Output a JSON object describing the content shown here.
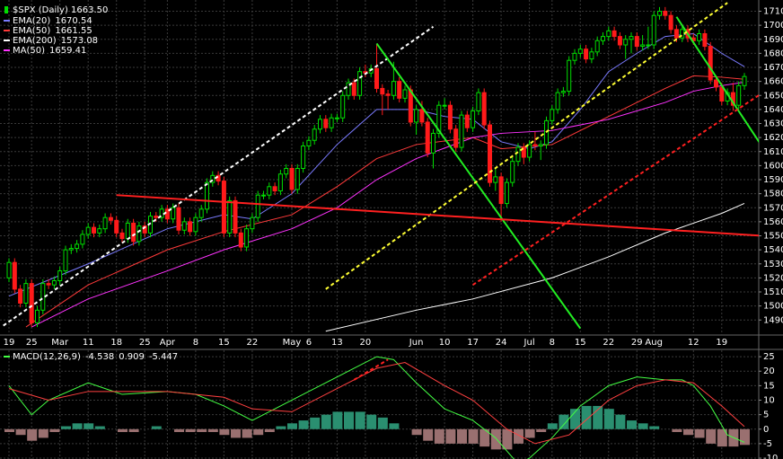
{
  "chart_data": [
    {
      "type": "candlestick",
      "title": "$SPX (Daily) 1663.50",
      "categories": [
        "19",
        null,
        null,
        null,
        "25",
        null,
        null,
        null,
        null,
        "Mar",
        null,
        null,
        null,
        null,
        "11",
        null,
        null,
        null,
        null,
        "18",
        null,
        null,
        null,
        null,
        "25",
        null,
        null,
        null,
        "Apr",
        null,
        null,
        null,
        null,
        "8",
        null,
        null,
        null,
        null,
        "15",
        null,
        null,
        null,
        null,
        "22",
        null,
        null,
        null,
        null,
        null,
        null,
        "May",
        null,
        null,
        "6",
        null,
        null,
        null,
        null,
        "13",
        null,
        null,
        null,
        null,
        "20",
        null,
        null,
        null,
        null,
        null,
        null,
        null,
        null,
        "Jun",
        null,
        null,
        null,
        null,
        "10",
        null,
        null,
        null,
        null,
        "17",
        null,
        null,
        null,
        null,
        "24",
        null,
        null,
        null,
        null,
        "Jul",
        null,
        null,
        null,
        "8",
        null,
        null,
        null,
        null,
        "15",
        null,
        null,
        null,
        null,
        "22",
        null,
        null,
        null,
        null,
        "29",
        null,
        null,
        "Aug",
        null,
        null,
        null,
        null,
        null,
        null,
        "12",
        null,
        null,
        null,
        null,
        "19",
        null,
        null,
        null,
        null
      ],
      "open": [
        1520,
        1531,
        1512,
        1502,
        1516,
        1488,
        1497,
        1516,
        1515,
        1518,
        1525,
        1540,
        1541,
        1544,
        1551,
        1556,
        1552,
        1555,
        1563,
        1561,
        1552,
        1548,
        1559,
        1546,
        1557,
        1552,
        1564,
        1563,
        1569,
        1562,
        1570,
        1554,
        1560,
        1553,
        1563,
        1569,
        1588,
        1593,
        1589,
        1552,
        1575,
        1552,
        1542,
        1555,
        1563,
        1579,
        1579,
        1585,
        1582,
        1594,
        1598,
        1583,
        1598,
        1614,
        1618,
        1626,
        1633,
        1627,
        1634,
        1634,
        1650,
        1659,
        1650,
        1667,
        1666,
        1669,
        1655,
        1651,
        1650,
        1660,
        1648,
        1654,
        1631,
        1640,
        1631,
        1609,
        1623,
        1643,
        1643,
        1626,
        1613,
        1636,
        1627,
        1639,
        1652,
        1629,
        1588,
        1592,
        1573,
        1588,
        1603,
        1613,
        1606,
        1615,
        1614,
        1615,
        1632,
        1640,
        1652,
        1653,
        1675,
        1680,
        1683,
        1676,
        1681,
        1689,
        1692,
        1696,
        1692,
        1686,
        1690,
        1692,
        1685,
        1686,
        1686,
        1707,
        1710,
        1707,
        1697,
        1691,
        1697,
        1691,
        1689,
        1694,
        1685,
        1661,
        1656,
        1646,
        1652,
        1643,
        1657
      ],
      "high": [
        1534,
        1534,
        1515,
        1519,
        1519,
        1500,
        1519,
        1519,
        1521,
        1528,
        1543,
        1544,
        1547,
        1554,
        1559,
        1559,
        1558,
        1566,
        1566,
        1564,
        1555,
        1562,
        1562,
        1560,
        1560,
        1567,
        1567,
        1572,
        1572,
        1573,
        1573,
        1563,
        1563,
        1566,
        1572,
        1591,
        1596,
        1596,
        1592,
        1578,
        1578,
        1555,
        1558,
        1566,
        1582,
        1582,
        1588,
        1588,
        1597,
        1601,
        1601,
        1601,
        1617,
        1621,
        1629,
        1636,
        1636,
        1637,
        1637,
        1653,
        1662,
        1662,
        1670,
        1672,
        1672,
        1687,
        1658,
        1654,
        1674,
        1663,
        1657,
        1657,
        1643,
        1646,
        1634,
        1626,
        1646,
        1648,
        1646,
        1629,
        1639,
        1639,
        1642,
        1655,
        1655,
        1632,
        1598,
        1595,
        1591,
        1606,
        1616,
        1616,
        1618,
        1624,
        1618,
        1635,
        1643,
        1655,
        1656,
        1678,
        1683,
        1686,
        1686,
        1684,
        1692,
        1695,
        1699,
        1699,
        1695,
        1693,
        1695,
        1695,
        1693,
        1699,
        1710,
        1713,
        1713,
        1710,
        1700,
        1700,
        1700,
        1694,
        1697,
        1697,
        1688,
        1664,
        1659,
        1655,
        1659,
        1660,
        1666
      ],
      "low": [
        1517,
        1509,
        1499,
        1499,
        1485,
        1485,
        1494,
        1512,
        1512,
        1515,
        1522,
        1537,
        1538,
        1541,
        1548,
        1549,
        1549,
        1552,
        1558,
        1549,
        1545,
        1545,
        1543,
        1543,
        1549,
        1549,
        1560,
        1560,
        1559,
        1559,
        1551,
        1551,
        1550,
        1550,
        1560,
        1566,
        1585,
        1586,
        1549,
        1549,
        1549,
        1539,
        1539,
        1552,
        1560,
        1576,
        1576,
        1579,
        1579,
        1591,
        1580,
        1580,
        1595,
        1611,
        1615,
        1623,
        1624,
        1624,
        1631,
        1631,
        1647,
        1647,
        1647,
        1663,
        1663,
        1652,
        1636,
        1640,
        1647,
        1645,
        1645,
        1628,
        1622,
        1628,
        1606,
        1598,
        1620,
        1640,
        1623,
        1610,
        1610,
        1624,
        1624,
        1636,
        1626,
        1585,
        1582,
        1560,
        1570,
        1585,
        1600,
        1601,
        1603,
        1611,
        1604,
        1612,
        1629,
        1637,
        1649,
        1650,
        1672,
        1677,
        1673,
        1673,
        1678,
        1686,
        1689,
        1689,
        1683,
        1676,
        1680,
        1682,
        1682,
        1683,
        1683,
        1704,
        1704,
        1694,
        1688,
        1688,
        1688,
        1686,
        1686,
        1682,
        1658,
        1653,
        1643,
        1643,
        1639,
        1640,
        1654
      ],
      "close": [
        1531,
        1512,
        1502,
        1516,
        1488,
        1497,
        1516,
        1515,
        1518,
        1525,
        1540,
        1541,
        1544,
        1551,
        1556,
        1552,
        1555,
        1563,
        1561,
        1552,
        1548,
        1559,
        1546,
        1557,
        1552,
        1564,
        1563,
        1569,
        1562,
        1570,
        1554,
        1560,
        1553,
        1563,
        1569,
        1588,
        1593,
        1589,
        1552,
        1575,
        1552,
        1542,
        1555,
        1563,
        1579,
        1579,
        1585,
        1582,
        1594,
        1598,
        1583,
        1598,
        1614,
        1618,
        1626,
        1633,
        1627,
        1634,
        1634,
        1650,
        1659,
        1650,
        1667,
        1666,
        1669,
        1655,
        1651,
        1650,
        1660,
        1648,
        1654,
        1631,
        1640,
        1631,
        1609,
        1623,
        1643,
        1643,
        1626,
        1613,
        1636,
        1627,
        1639,
        1652,
        1629,
        1588,
        1592,
        1573,
        1588,
        1603,
        1613,
        1606,
        1615,
        1614,
        1615,
        1632,
        1640,
        1652,
        1653,
        1675,
        1680,
        1683,
        1676,
        1681,
        1689,
        1692,
        1696,
        1692,
        1686,
        1690,
        1692,
        1685,
        1686,
        1686,
        1707,
        1710,
        1707,
        1697,
        1691,
        1697,
        1691,
        1689,
        1694,
        1685,
        1661,
        1656,
        1646,
        1652,
        1643,
        1657,
        1663.5
      ],
      "up_color": "#00dd00",
      "down_color": "#ff1a1a",
      "ylim": [
        1478,
        1718
      ],
      "yticks": [
        1490,
        1500,
        1510,
        1520,
        1530,
        1540,
        1550,
        1560,
        1570,
        1580,
        1590,
        1600,
        1610,
        1620,
        1630,
        1640,
        1650,
        1660,
        1670,
        1680,
        1690,
        1700,
        1710
      ],
      "grid": true,
      "series": [
        {
          "name": "EMA(20)",
          "color": "#7b7bff",
          "x": [
            0,
            14,
            28,
            38,
            43,
            50,
            58,
            65,
            72,
            77,
            82,
            87,
            92,
            96,
            101,
            106,
            111,
            116,
            121,
            126,
            130
          ],
          "values": [
            1507,
            1530,
            1555,
            1565,
            1562,
            1580,
            1615,
            1640,
            1640,
            1635,
            1633,
            1617,
            1612,
            1617,
            1640,
            1667,
            1680,
            1692,
            1694,
            1680,
            1670.54
          ]
        },
        {
          "name": "EMA(50)",
          "color": "#ff3a3a",
          "x": [
            3,
            14,
            28,
            38,
            50,
            58,
            65,
            72,
            82,
            87,
            96,
            106,
            116,
            121,
            126,
            130
          ],
          "values": [
            1485,
            1515,
            1540,
            1553,
            1565,
            1585,
            1605,
            1615,
            1620,
            1612,
            1615,
            1635,
            1655,
            1664,
            1663,
            1661.55
          ]
        },
        {
          "name": "EMA(200)",
          "color": "#ffffff",
          "x": [
            56,
            72,
            82,
            96,
            106,
            116,
            121,
            126,
            130
          ],
          "values": [
            1482,
            1497,
            1505,
            1520,
            1535,
            1552,
            1559,
            1566,
            1573.08
          ]
        },
        {
          "name": "MA(50)",
          "color": "#ff33ff",
          "x": [
            4,
            14,
            28,
            38,
            50,
            58,
            65,
            72,
            82,
            87,
            96,
            106,
            116,
            121,
            126,
            130
          ],
          "values": [
            1485,
            1505,
            1525,
            1540,
            1555,
            1570,
            1590,
            1605,
            1620,
            1623,
            1625,
            1633,
            1645,
            1653,
            1657,
            1659.41
          ]
        }
      ],
      "trendlines": [
        {
          "color": "#ffffff",
          "dashed": true,
          "x": [
            -1,
            75
          ],
          "y": [
            1486,
            1699
          ]
        },
        {
          "color": "#22ee22",
          "dashed": false,
          "x": [
            65,
            101
          ],
          "y": [
            1687,
            1484
          ]
        },
        {
          "color": "#22ee22",
          "dashed": false,
          "x": [
            118,
            137
          ],
          "y": [
            1706,
            1590
          ]
        },
        {
          "color": "#ffff33",
          "dashed": true,
          "x": [
            56,
            127
          ],
          "y": [
            1512,
            1716
          ]
        },
        {
          "color": "#ff2020",
          "dashed": false,
          "x": [
            19,
            137
          ],
          "y": [
            1579,
            1549
          ]
        },
        {
          "color": "#ff2020",
          "dashed": true,
          "x": [
            82,
            137
          ],
          "y": [
            1515,
            1662
          ]
        }
      ]
    },
    {
      "type": "macd",
      "series": [
        {
          "name": "MACD(12,26,9)",
          "color": "#44ff44",
          "x": [
            0,
            4,
            7,
            14,
            20,
            28,
            33,
            38,
            43,
            48,
            54,
            60,
            65,
            68,
            72,
            77,
            82,
            86,
            90,
            92,
            96,
            101,
            106,
            111,
            116,
            119,
            121,
            124,
            127,
            130
          ],
          "values": [
            15,
            5,
            10,
            16,
            12,
            13,
            12,
            8,
            3,
            8,
            14,
            20,
            25,
            24,
            16,
            7,
            3,
            -3,
            -12,
            -10,
            -3,
            8,
            15,
            18,
            17,
            17,
            15,
            8,
            -2,
            -4.538
          ]
        },
        {
          "color": "#ff4040",
          "x": [
            0,
            7,
            14,
            28,
            38,
            43,
            50,
            58,
            65,
            70,
            77,
            82,
            88,
            93,
            99,
            106,
            111,
            116,
            121,
            126,
            130
          ],
          "values": [
            14,
            10,
            13,
            13,
            11,
            7,
            6,
            14,
            21,
            23,
            15,
            10,
            0,
            -5,
            -2,
            10,
            15,
            17,
            16,
            8,
            0.909
          ]
        }
      ],
      "histogram": {
        "pos_color": "#2a8f70",
        "neg_color": "#9a7070",
        "x": [
          0,
          2,
          4,
          6,
          8,
          10,
          12,
          14,
          16,
          18,
          20,
          22,
          24,
          26,
          28,
          30,
          32,
          34,
          36,
          38,
          40,
          42,
          44,
          46,
          48,
          50,
          52,
          54,
          56,
          58,
          60,
          62,
          64,
          66,
          68,
          70,
          72,
          74,
          76,
          78,
          80,
          82,
          84,
          86,
          88,
          90,
          92,
          94,
          96,
          98,
          100,
          102,
          104,
          106,
          108,
          110,
          112,
          114,
          116,
          118,
          120,
          122,
          124,
          126,
          128,
          130
        ],
        "values": [
          -1,
          -2,
          -4,
          -3,
          -1,
          1,
          2,
          2,
          1,
          0,
          -1,
          -1,
          0,
          1,
          0,
          -1,
          -1,
          -1,
          -1,
          -2,
          -3,
          -3,
          -2,
          -1,
          1,
          2,
          3,
          4,
          5,
          6,
          6,
          6,
          5,
          4,
          2,
          0,
          -2,
          -4,
          -5,
          -5,
          -5,
          -5,
          -6,
          -7,
          -7,
          -5,
          -3,
          -1,
          2,
          5,
          7,
          8,
          8,
          7,
          5,
          3,
          2,
          1,
          0,
          -1,
          -2,
          -3,
          -5,
          -6,
          -6,
          -5.447
        ]
      },
      "ylim": [
        -10.3,
        27.2
      ],
      "yticks": [
        -10,
        -5,
        0,
        5,
        10,
        15,
        20,
        25
      ],
      "grid": true,
      "trendlines": [
        {
          "color": "#ff2020",
          "dashed": true,
          "x": [
            61,
            67
          ],
          "y": [
            17,
            24
          ]
        }
      ]
    }
  ]
}
